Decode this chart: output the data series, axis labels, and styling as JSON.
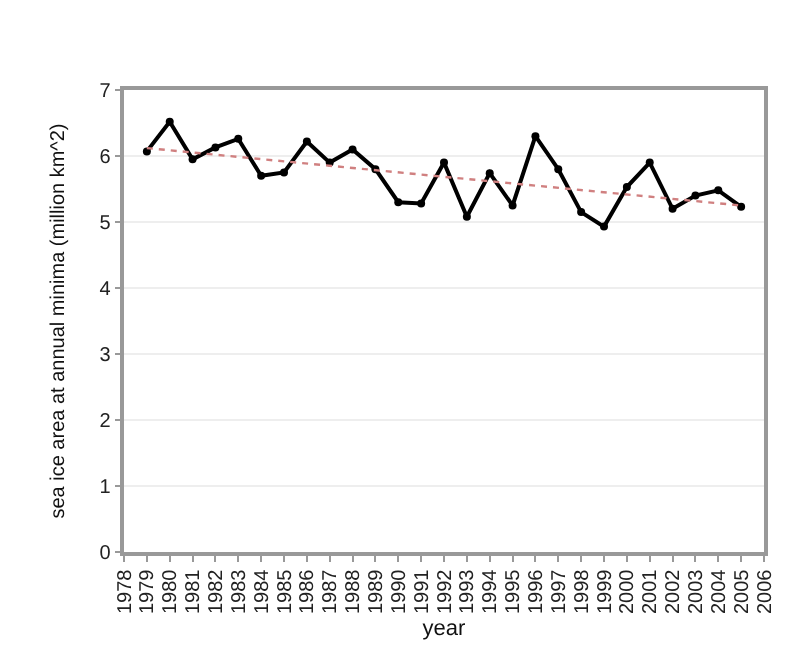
{
  "chart_data": {
    "type": "line",
    "xlabel": "year",
    "ylabel": "sea ice area at annual minima (million km^2)",
    "x": [
      1979,
      1980,
      1981,
      1982,
      1983,
      1984,
      1985,
      1986,
      1987,
      1988,
      1989,
      1990,
      1991,
      1992,
      1993,
      1994,
      1995,
      1996,
      1997,
      1998,
      1999,
      2000,
      2001,
      2002,
      2003,
      2004,
      2005
    ],
    "series": [
      {
        "color": "#000000",
        "values": [
          6.07,
          6.52,
          5.95,
          6.13,
          6.26,
          5.7,
          5.75,
          6.22,
          5.9,
          6.1,
          5.8,
          5.3,
          5.28,
          5.9,
          5.08,
          5.74,
          5.25,
          6.3,
          5.8,
          5.15,
          4.93,
          5.53,
          5.9,
          5.2,
          5.4,
          5.48,
          5.23
        ],
        "marker": "circle",
        "line_style": "solid"
      },
      {
        "type": "line",
        "color": "#d08080",
        "x": [
          1979,
          2005
        ],
        "values": [
          6.12,
          5.25
        ],
        "marker": "none",
        "line_style": "dotted"
      }
    ],
    "xlim": [
      1978,
      2006
    ],
    "xticks": [
      1978,
      1979,
      1980,
      1981,
      1982,
      1983,
      1984,
      1985,
      1986,
      1987,
      1988,
      1989,
      1990,
      1991,
      1992,
      1993,
      1994,
      1995,
      1996,
      1997,
      1998,
      1999,
      2000,
      2001,
      2002,
      2003,
      2004,
      2005,
      2006
    ],
    "ylim": [
      0,
      7
    ],
    "yticks": [
      0,
      1,
      2,
      3,
      4,
      5,
      6,
      7
    ],
    "grid": "y"
  }
}
